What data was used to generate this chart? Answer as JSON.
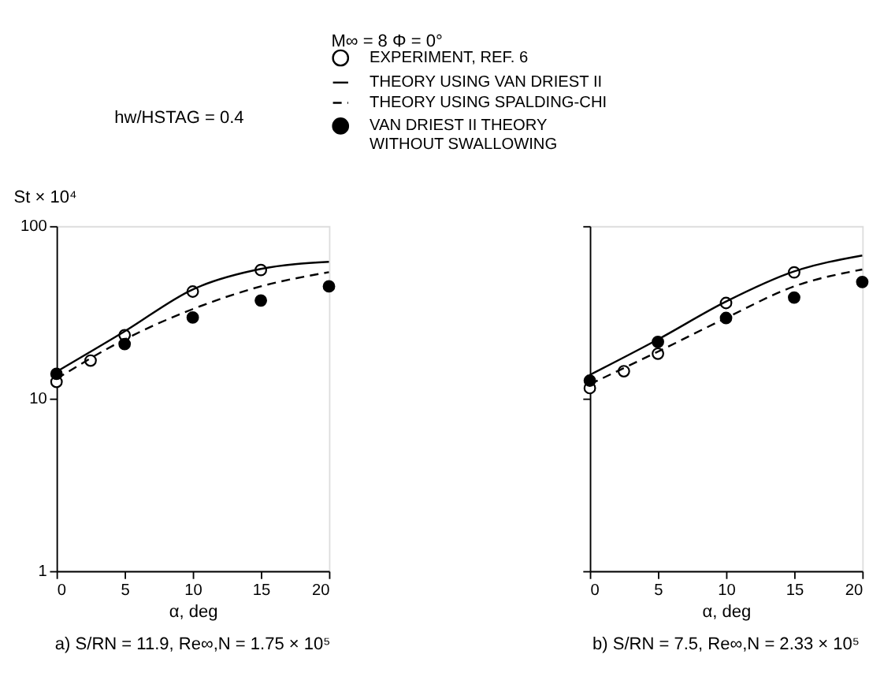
{
  "chart_data": [
    {
      "type": "scatter",
      "title": "M∞ = 8   Φ = 0°",
      "xlabel": "α, deg",
      "ylabel": "St × 10⁴",
      "annotations": [
        "hw/HSTAG = 0.4",
        "a) S/RN = 11.9, Re∞,N = 1.75 × 10⁵"
      ],
      "log": "y",
      "xlim": [
        0,
        20
      ],
      "xticks": [
        0,
        5,
        10,
        15,
        20
      ],
      "ylim": [
        1,
        100
      ],
      "yticks": [
        1,
        10,
        100
      ],
      "grid": false,
      "legend": "top",
      "marker": "circle",
      "series": [
        {
          "name": "EXPERIMENT, REF. 6",
          "color": "#000000",
          "x": [
            0,
            2.5,
            5,
            10,
            15
          ],
          "values": [
            12.5,
            16.6,
            23.3,
            41.7,
            55.6
          ]
        },
        {
          "name": "THEORY USING VAN DRIEST II",
          "type": "line",
          "marker": "none",
          "line_style": "solid",
          "color": "#000000",
          "x": [
            0,
            5,
            10,
            15,
            20
          ],
          "values": [
            14.3,
            24.5,
            42.9,
            56.4,
            62
          ]
        },
        {
          "name": "THEORY USING SPALDING-CHI",
          "type": "line",
          "marker": "none",
          "line_style": "dashed",
          "color": "#000000",
          "x": [
            0,
            5,
            10,
            15,
            20
          ],
          "values": [
            13,
            22,
            33,
            44.7,
            54
          ]
        },
        {
          "name": "VAN DRIEST II THEORY WITHOUT SWALLOWING",
          "color": "#000000",
          "x": [
            0,
            5,
            10,
            15,
            20
          ],
          "values": [
            13.9,
            20.7,
            29.5,
            37,
            44.7
          ]
        }
      ]
    },
    {
      "type": "scatter",
      "xlabel": "α, deg",
      "annotations": [
        "b) S/RN = 7.5, Re∞,N = 2.33 × 10⁵"
      ],
      "log": "y",
      "xlim": [
        0,
        20
      ],
      "xticks": [
        0,
        5,
        10,
        15,
        20
      ],
      "ylim": [
        1,
        100
      ],
      "yticks": [
        1,
        10,
        100
      ],
      "grid": false,
      "tick_labels": "x",
      "marker": "circle",
      "series": [
        {
          "color": "#000000",
          "x": [
            0,
            2.5,
            5,
            10,
            15
          ],
          "values": [
            11.5,
            14.4,
            18.2,
            35.8,
            53.9
          ]
        },
        {
          "type": "line",
          "marker": "none",
          "line_style": "solid",
          "color": "#000000",
          "x": [
            0,
            5,
            10,
            15,
            20
          ],
          "values": [
            13.7,
            22,
            36.5,
            54.6,
            67.5
          ]
        },
        {
          "type": "line",
          "marker": "none",
          "line_style": "dashed",
          "color": "#000000",
          "x": [
            0,
            5,
            10,
            15,
            20
          ],
          "values": [
            12.1,
            18.7,
            29.3,
            44.7,
            56
          ]
        },
        {
          "color": "#000000",
          "x": [
            0,
            5,
            10,
            15,
            20
          ],
          "values": [
            12.7,
            21.3,
            29.3,
            38.5,
            47.4
          ]
        }
      ]
    }
  ]
}
